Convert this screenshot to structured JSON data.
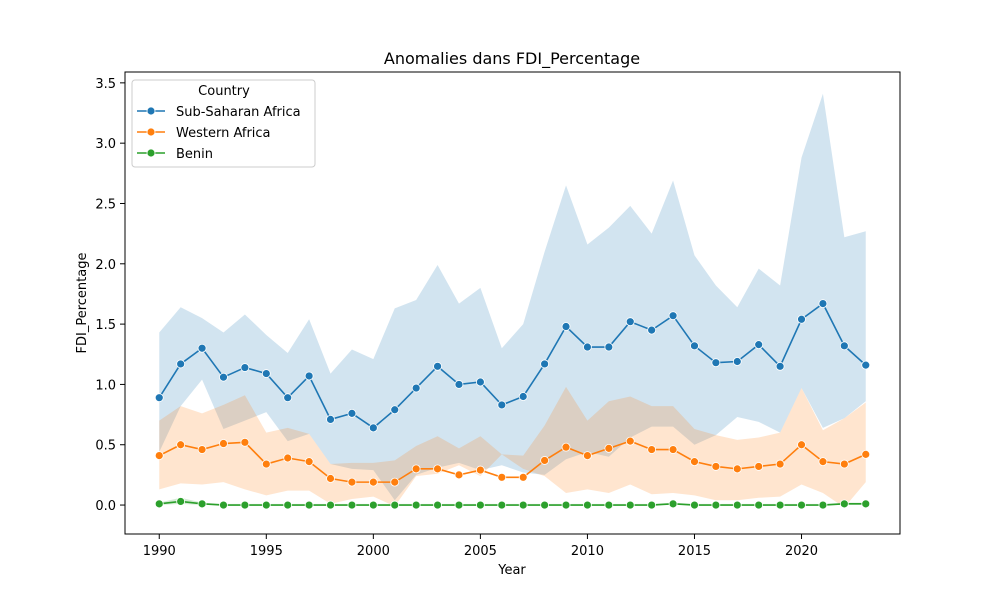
{
  "chart_data": {
    "type": "line",
    "title": "Anomalies dans FDI_Percentage",
    "xlabel": "Year",
    "ylabel": "FDI_Percentage",
    "xlim": [
      1988.4,
      2024.6
    ],
    "ylim": [
      -0.24,
      3.59
    ],
    "x_ticks": [
      1990,
      1995,
      2000,
      2005,
      2010,
      2015,
      2020
    ],
    "y_ticks": [
      0.0,
      0.5,
      1.0,
      1.5,
      2.0,
      2.5,
      3.0,
      3.5
    ],
    "y_tick_labels": [
      "0.0",
      "0.5",
      "1.0",
      "1.5",
      "2.0",
      "2.5",
      "3.0",
      "3.5"
    ],
    "grid": false,
    "legend": {
      "title": "Country",
      "position": "top-left"
    },
    "x": [
      1990,
      1991,
      1992,
      1993,
      1994,
      1995,
      1996,
      1997,
      1998,
      1999,
      2000,
      2001,
      2002,
      2003,
      2004,
      2005,
      2006,
      2007,
      2008,
      2009,
      2010,
      2011,
      2012,
      2013,
      2014,
      2015,
      2016,
      2017,
      2018,
      2019,
      2020,
      2021,
      2022,
      2023
    ],
    "series": [
      {
        "name": "Sub-Saharan Africa",
        "color": "#1f77b4",
        "values": [
          0.89,
          1.17,
          1.3,
          1.06,
          1.14,
          1.09,
          0.89,
          1.07,
          0.71,
          0.76,
          0.64,
          0.79,
          0.97,
          1.15,
          1.0,
          1.02,
          0.83,
          0.9,
          1.17,
          1.48,
          1.31,
          1.31,
          1.52,
          1.45,
          1.57,
          1.32,
          1.18,
          1.19,
          1.33,
          1.15,
          1.54,
          1.67,
          1.32,
          1.16
        ],
        "ci_lower": [
          0.44,
          0.82,
          1.04,
          0.63,
          0.7,
          0.77,
          0.53,
          0.59,
          0.34,
          0.3,
          0.29,
          0.04,
          0.25,
          0.31,
          0.35,
          0.29,
          0.33,
          0.27,
          0.25,
          0.38,
          0.44,
          0.4,
          0.56,
          0.65,
          0.65,
          0.5,
          0.58,
          0.73,
          0.69,
          0.6,
          0.97,
          0.64,
          0.72,
          0.86
        ],
        "ci_upper": [
          1.43,
          1.64,
          1.55,
          1.43,
          1.58,
          1.41,
          1.26,
          1.54,
          1.09,
          1.29,
          1.21,
          1.63,
          1.7,
          1.99,
          1.67,
          1.8,
          1.3,
          1.5,
          2.1,
          2.65,
          2.16,
          2.3,
          2.48,
          2.25,
          2.69,
          2.07,
          1.82,
          1.64,
          1.96,
          1.82,
          2.88,
          3.41,
          2.22,
          2.27
        ]
      },
      {
        "name": "Western Africa",
        "color": "#ff7f0e",
        "values": [
          0.41,
          0.5,
          0.46,
          0.51,
          0.52,
          0.34,
          0.39,
          0.36,
          0.22,
          0.19,
          0.19,
          0.19,
          0.3,
          0.3,
          0.25,
          0.29,
          0.23,
          0.23,
          0.37,
          0.48,
          0.41,
          0.47,
          0.53,
          0.46,
          0.46,
          0.36,
          0.32,
          0.3,
          0.32,
          0.34,
          0.5,
          0.36,
          0.34,
          0.42
        ],
        "ci_lower": [
          0.13,
          0.18,
          0.17,
          0.19,
          0.13,
          0.08,
          0.12,
          0.12,
          0.01,
          0.05,
          0.07,
          -0.01,
          0.24,
          0.26,
          0.33,
          0.24,
          0.42,
          0.3,
          0.24,
          0.1,
          0.13,
          0.1,
          0.17,
          0.09,
          0.1,
          0.08,
          0.04,
          0.04,
          0.06,
          0.07,
          0.17,
          0.1,
          -0.02,
          0.19
        ],
        "ci_upper": [
          0.7,
          0.82,
          0.76,
          0.83,
          0.91,
          0.6,
          0.64,
          0.59,
          0.34,
          0.35,
          0.35,
          0.37,
          0.49,
          0.57,
          0.47,
          0.57,
          0.42,
          0.41,
          0.66,
          0.98,
          0.7,
          0.86,
          0.9,
          0.82,
          0.82,
          0.63,
          0.58,
          0.54,
          0.56,
          0.6,
          0.97,
          0.62,
          0.72,
          0.85
        ]
      },
      {
        "name": "Benin",
        "color": "#2ca02c",
        "values": [
          0.01,
          0.03,
          0.01,
          0.0,
          0.0,
          0.0,
          0.0,
          0.0,
          0.0,
          0.0,
          0.0,
          0.0,
          0.0,
          0.0,
          0.0,
          0.0,
          0.0,
          0.0,
          0.0,
          0.0,
          0.0,
          0.0,
          0.0,
          0.0,
          0.01,
          0.0,
          0.0,
          0.0,
          0.0,
          0.0,
          0.0,
          0.0,
          0.01,
          0.01
        ],
        "ci_lower": [
          0.0,
          0.01,
          0.0,
          0.0,
          0.0,
          0.0,
          0.0,
          0.0,
          0.0,
          0.0,
          0.0,
          0.0,
          0.0,
          0.0,
          0.0,
          0.0,
          0.0,
          0.0,
          0.0,
          0.0,
          0.0,
          0.0,
          0.0,
          0.0,
          0.0,
          0.0,
          0.0,
          0.0,
          0.0,
          0.0,
          0.0,
          0.0,
          0.0,
          0.0
        ],
        "ci_upper": [
          0.02,
          0.06,
          0.02,
          0.01,
          0.01,
          0.01,
          0.01,
          0.01,
          0.01,
          0.01,
          0.01,
          0.01,
          0.01,
          0.01,
          0.01,
          0.01,
          0.01,
          0.01,
          0.01,
          0.01,
          0.01,
          0.01,
          0.01,
          0.01,
          0.02,
          0.01,
          0.01,
          0.01,
          0.01,
          0.01,
          0.01,
          0.01,
          0.02,
          0.02
        ]
      }
    ]
  }
}
